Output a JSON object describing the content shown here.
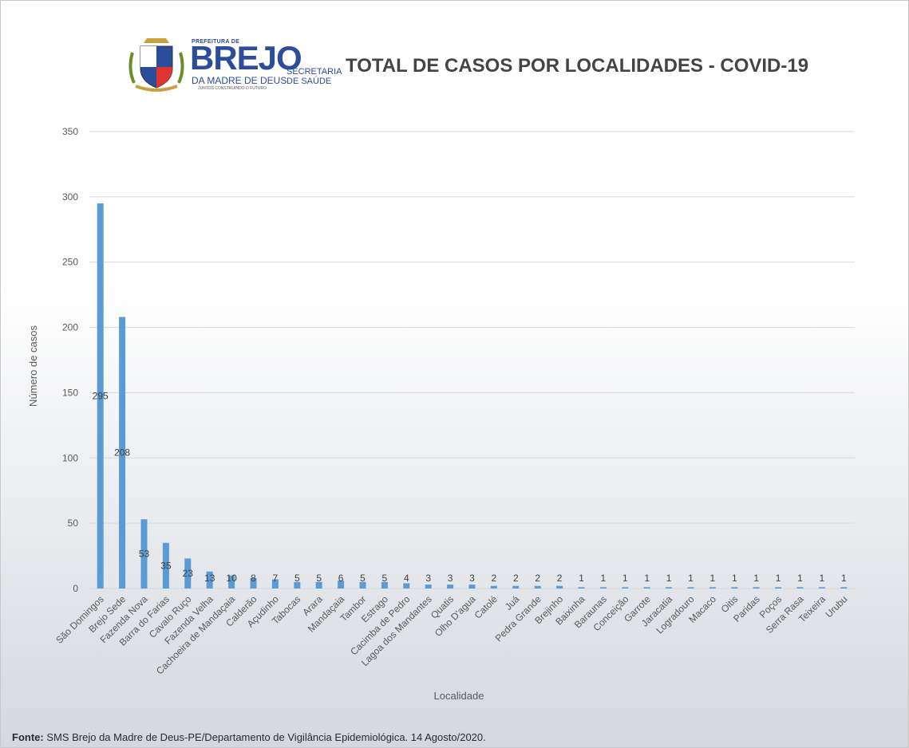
{
  "logo": {
    "small": "PREFEITURA DE",
    "big": "BREJO",
    "sub": "DA MADRE DE DEUS",
    "motto": "JUNTOS CONSTRUINDO O FUTURO",
    "sec_line1": "SECRETARIA",
    "sec_line2": "DE SAÚDE"
  },
  "footer": {
    "label": "Fonte:",
    "text": " SMS Brejo da Madre de Deus-PE/Departamento de Vigilância Epidemiológica. 14 Agosto/2020."
  },
  "colors": {
    "bar": "#5b9bd5",
    "grid": "#d9d9d9",
    "text": "#595959"
  },
  "chart_data": {
    "type": "bar",
    "title": "TOTAL DE CASOS POR LOCALIDADES - COVID-19",
    "xlabel": "Localidade",
    "ylabel": "Número de casos",
    "ylim": [
      0,
      350
    ],
    "yticks": [
      0,
      50,
      100,
      150,
      200,
      250,
      300,
      350
    ],
    "grid": true,
    "categories": [
      "São Domingos",
      "Brejo Sede",
      "Fazenda Nova",
      "Barra do Farias",
      "Cavalo Ruço",
      "Fazenda Velha",
      "Cachoeira de Mandaçaia",
      "Calderão",
      "Açudinho",
      "Tabocas",
      "Arara",
      "Mandaçaia",
      "Tambor",
      "Estrago",
      "Cacimba de Pedro",
      "Lagoa dos Mandantes",
      "Quatis",
      "Olho D'agua",
      "Catolé",
      "Juá",
      "Pedra Grande",
      "Brejinho",
      "Baixinha",
      "Baraunas",
      "Conceição",
      "Garrote",
      "Jaracatia",
      "Logradouro",
      "Macaco",
      "Oitis",
      "Paridas",
      "Poços",
      "Serra Rasa",
      "Teixeira",
      "Urubu"
    ],
    "values": [
      295,
      208,
      53,
      35,
      23,
      13,
      10,
      8,
      7,
      5,
      5,
      6,
      5,
      5,
      4,
      3,
      3,
      3,
      2,
      2,
      2,
      2,
      1,
      1,
      1,
      1,
      1,
      1,
      1,
      1,
      1,
      1,
      1,
      1,
      1
    ]
  }
}
